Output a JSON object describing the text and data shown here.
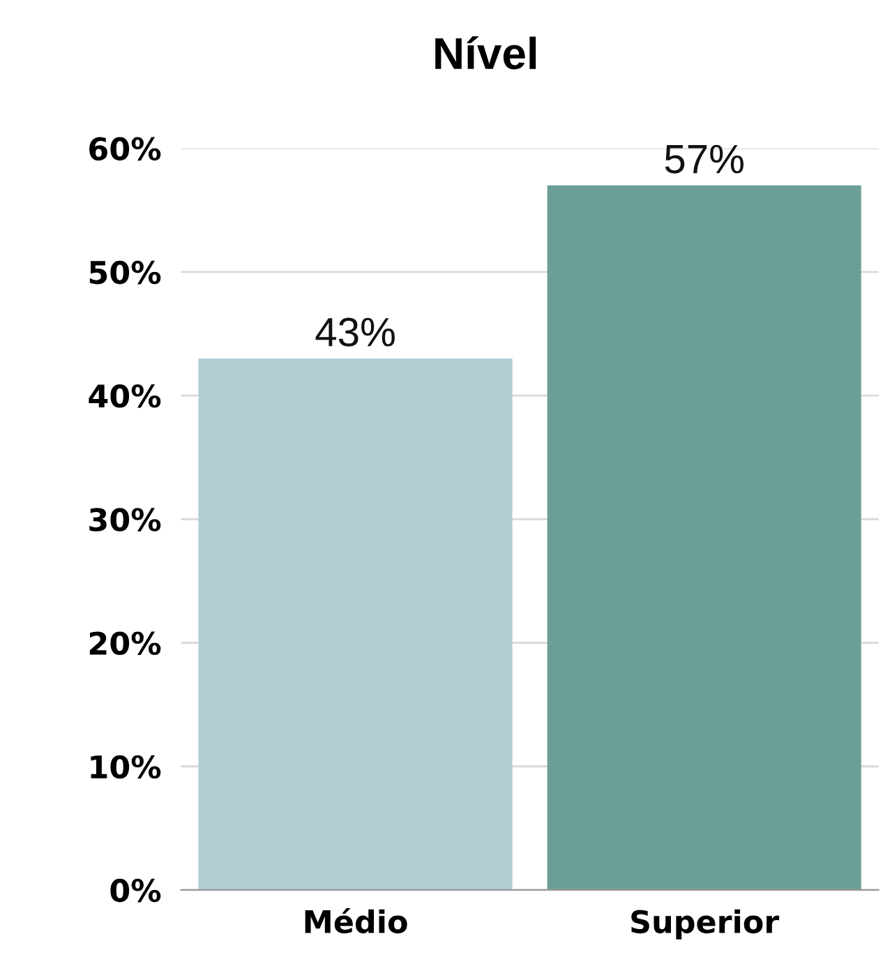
{
  "chart_data": {
    "type": "bar",
    "title": "Nível",
    "categories": [
      "Médio",
      "Superior"
    ],
    "values": [
      43,
      57
    ],
    "colors": [
      "#afcdd3",
      "#6b9e96"
    ],
    "value_labels": [
      "43%",
      "57%"
    ],
    "ylim": [
      0,
      60
    ],
    "yticks": [
      {
        "value": 0,
        "label": "0%"
      },
      {
        "value": 10,
        "label": "10%"
      },
      {
        "value": 20,
        "label": "20%"
      },
      {
        "value": 30,
        "label": "30%"
      },
      {
        "value": 40,
        "label": "40%"
      },
      {
        "value": 50,
        "label": "50%"
      },
      {
        "value": 60,
        "label": "60%"
      }
    ],
    "grid": "y",
    "legend": false
  }
}
